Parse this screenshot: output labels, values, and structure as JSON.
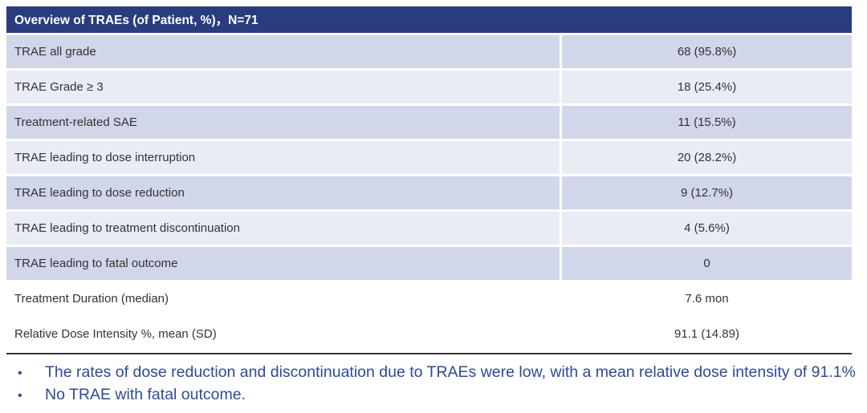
{
  "table": {
    "header": "Overview of TRAEs (of Patient, %)，N=71",
    "rows": [
      {
        "label": "TRAE all grade",
        "value": "68 (95.8%)"
      },
      {
        "label": "TRAE Grade ≥ 3",
        "value": "18 (25.4%)"
      },
      {
        "label": "Treatment-related SAE",
        "value": "11 (15.5%)"
      },
      {
        "label": "TRAE leading to dose interruption",
        "value": "20 (28.2%)"
      },
      {
        "label": "TRAE leading to dose reduction",
        "value": "9 (12.7%)"
      },
      {
        "label": "TRAE leading to treatment discontinuation",
        "value": "4 (5.6%)"
      },
      {
        "label": "TRAE leading to fatal outcome",
        "value": "0"
      },
      {
        "label": "Treatment Duration (median)",
        "value": "7.6 mon"
      },
      {
        "label": "Relative Dose Intensity %, mean (SD)",
        "value": "91.1 (14.89)"
      }
    ]
  },
  "bullets": [
    "The rates of dose reduction and discontinuation due to TRAEs were low, with a mean relative dose intensity of 91.1%",
    "No TRAE with fatal outcome."
  ],
  "icons": {
    "bullet": "•"
  },
  "colors": {
    "header_bg": "#293c7e",
    "row_dark": "#d1d6e9",
    "row_light": "#e9ecf5",
    "rule": "#333333",
    "bullet_text": "#2c4a9a"
  }
}
